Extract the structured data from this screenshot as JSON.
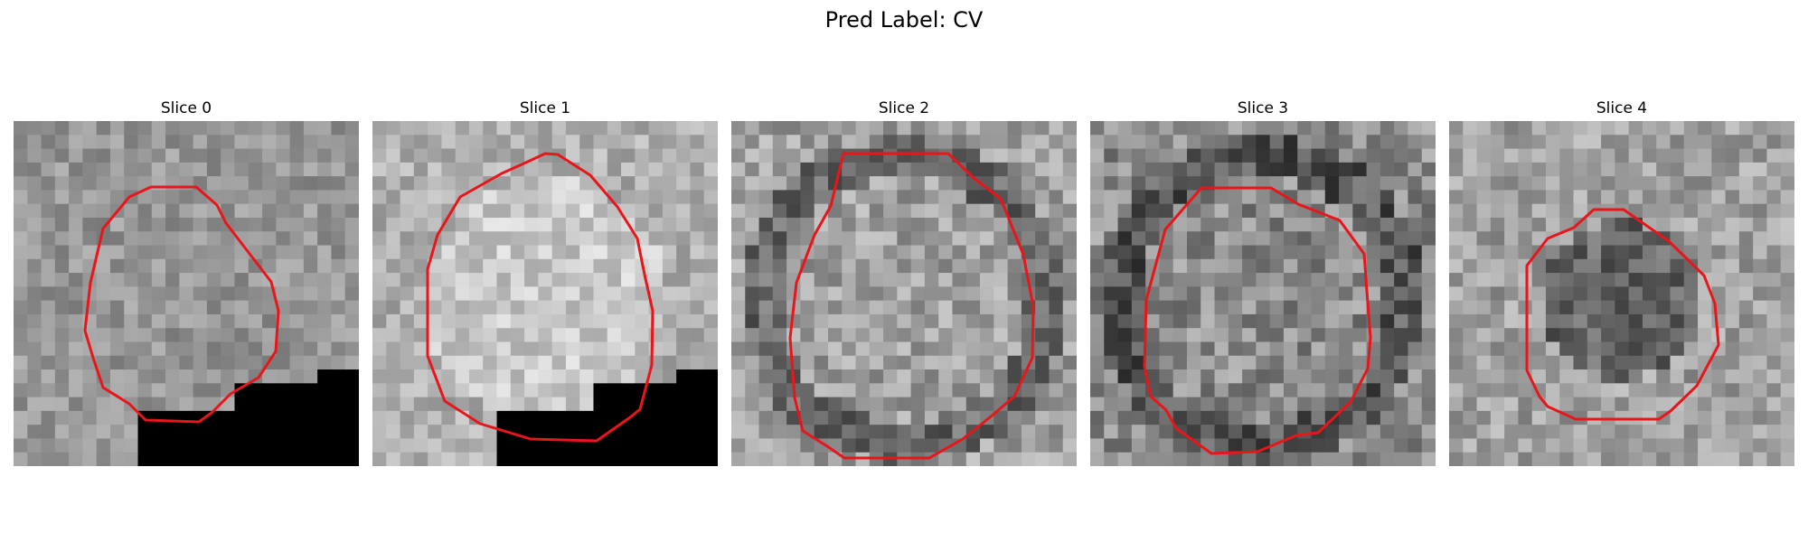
{
  "figure": {
    "title": "Pred Label: CV"
  },
  "panels": [
    {
      "title": "Slice 0",
      "grid_size": 25,
      "mean_intensity": 150,
      "contrast": 30,
      "seed": 11,
      "black_region": "bottom-right",
      "contour_color": "#e8161a"
    },
    {
      "title": "Slice 1",
      "grid_size": 25,
      "mean_intensity": 175,
      "contrast": 32,
      "seed": 23,
      "black_region": "bottom-right",
      "contour_color": "#e8161a"
    },
    {
      "title": "Slice 2",
      "grid_size": 25,
      "mean_intensity": 160,
      "contrast": 40,
      "seed": 37,
      "black_region": "none",
      "contour_color": "#e8161a"
    },
    {
      "title": "Slice 3",
      "grid_size": 25,
      "mean_intensity": 140,
      "contrast": 45,
      "seed": 51,
      "black_region": "none",
      "contour_color": "#e8161a"
    },
    {
      "title": "Slice 4",
      "grid_size": 25,
      "mean_intensity": 160,
      "contrast": 38,
      "seed": 73,
      "black_region": "none",
      "contour_color": "#e8161a"
    }
  ]
}
